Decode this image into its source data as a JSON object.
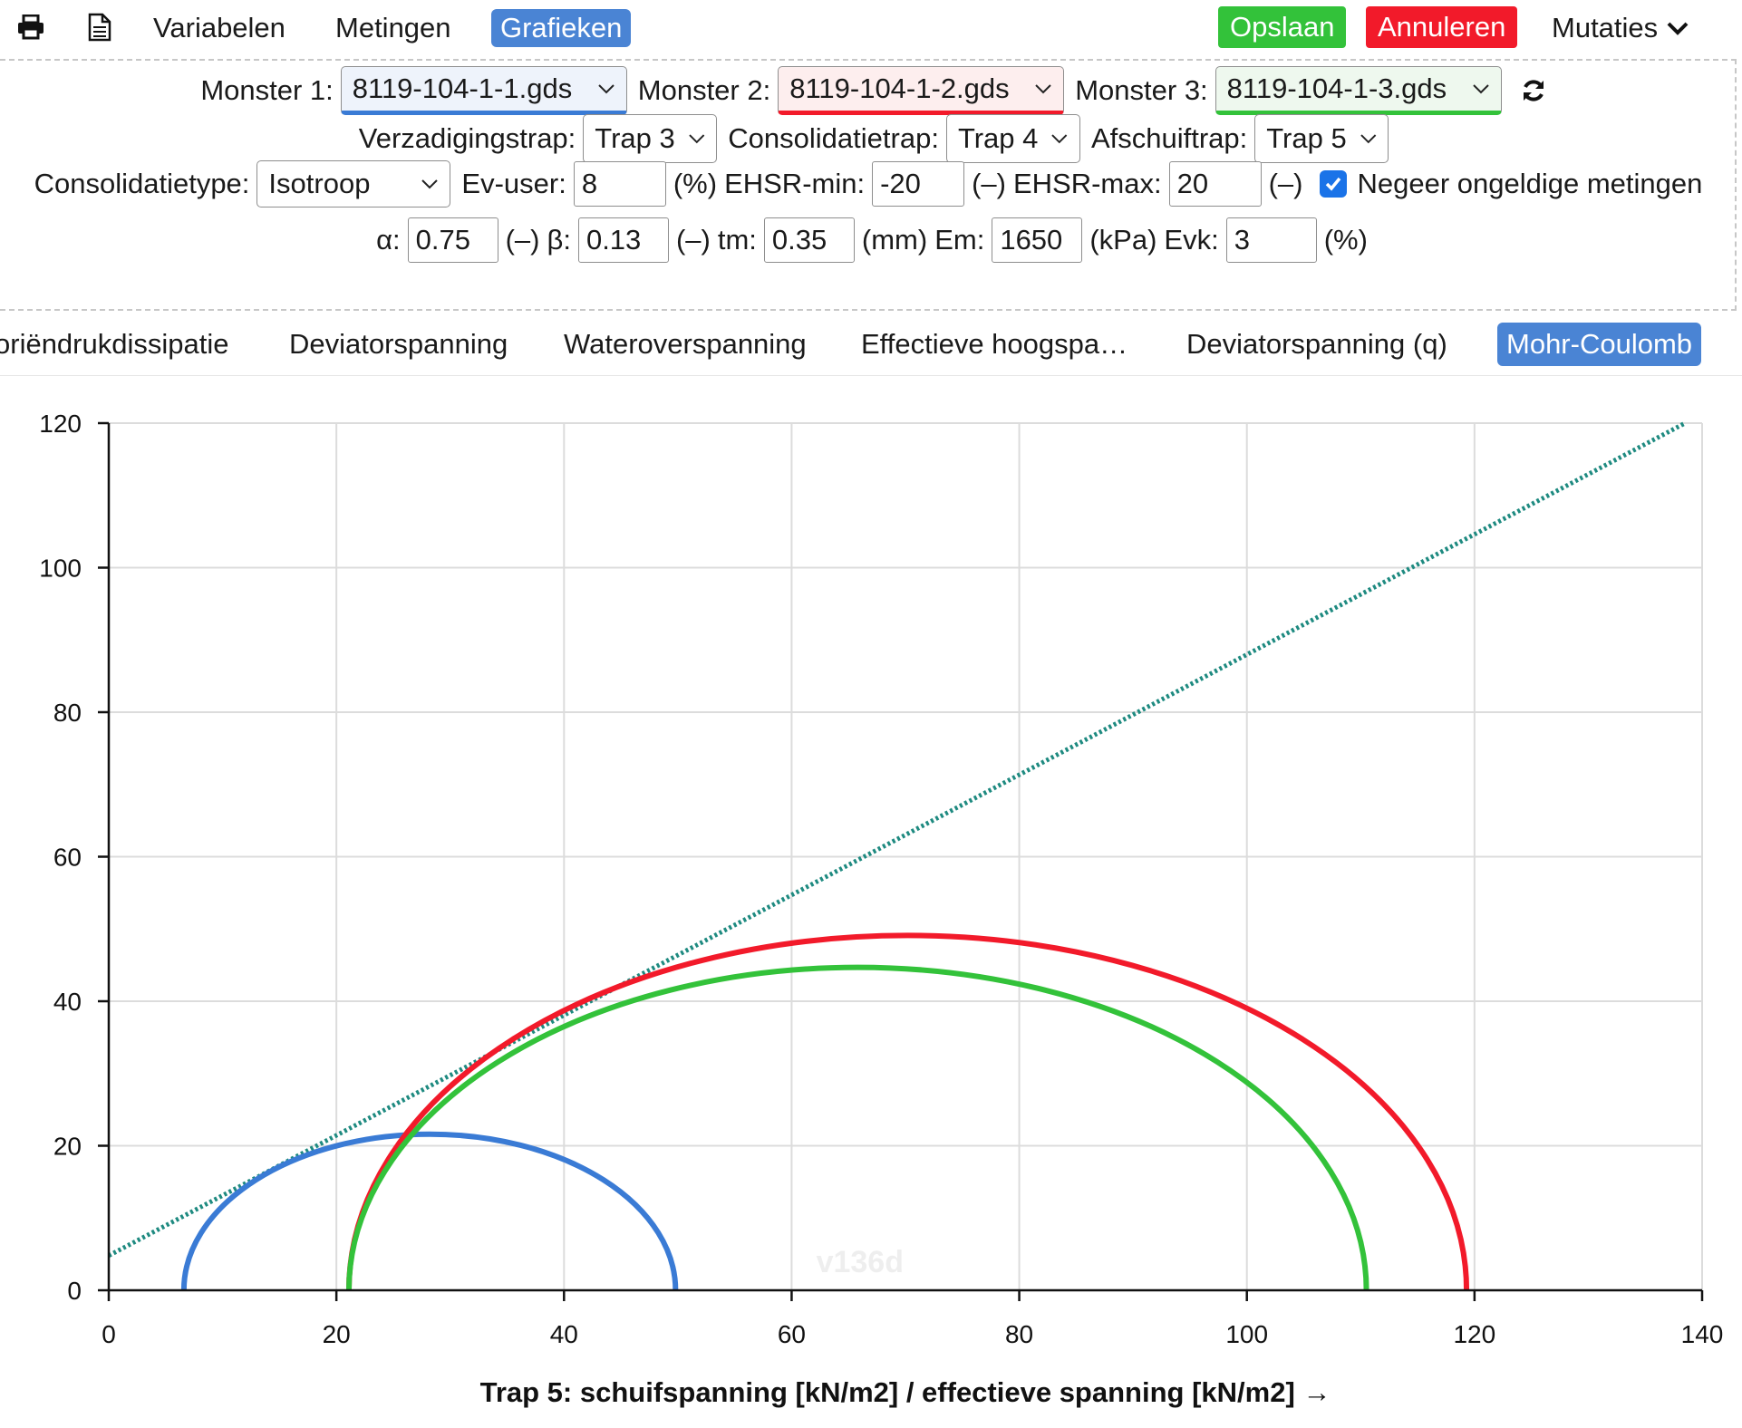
{
  "toolbar": {
    "print_icon": "printer-icon",
    "document_icon": "document-icon",
    "variabelen": "Variabelen",
    "metingen": "Metingen",
    "grafieken": "Grafieken",
    "opslaan": "Opslaan",
    "annuleren": "Annuleren",
    "mutaties": "Mutaties"
  },
  "samples": {
    "monster1_label": "Monster 1:",
    "monster1_value": "8119-104-1-1.gds",
    "monster2_label": "Monster 2:",
    "monster2_value": "8119-104-1-2.gds",
    "monster3_label": "Monster 3:",
    "monster3_value": "8119-104-1-3.gds",
    "refresh_icon": "refresh-icon"
  },
  "stages": {
    "verzadiging_label": "Verzadigingstrap:",
    "verzadiging_value": "Trap 3",
    "consolidatie_label": "Consolidatietrap:",
    "consolidatie_value": "Trap 4",
    "afschuif_label": "Afschuiftrap:",
    "afschuif_value": "Trap 5"
  },
  "params1": {
    "consolidatietype_label": "Consolidatietype:",
    "consolidatietype_value": "Isotroop",
    "ev_label": "Ev-user:",
    "ev_value": "8",
    "ev_unit": "(%)",
    "ehsr_min_label": "EHSR-min:",
    "ehsr_min_value": "-20",
    "ehsr_min_unit": "(–)",
    "ehsr_max_label": "EHSR-max:",
    "ehsr_max_value": "20",
    "ehsr_max_unit": "(–)",
    "negeer_label": "Negeer ongeldige metingen",
    "negeer_checked": true
  },
  "params2": {
    "alpha_label": "α:",
    "alpha_value": "0.75",
    "alpha_unit": "(–)",
    "beta_label": "β:",
    "beta_value": "0.13",
    "beta_unit": "(–)",
    "tm_label": "tm:",
    "tm_value": "0.35",
    "tm_unit": "(mm)",
    "em_label": "Em:",
    "em_value": "1650",
    "em_unit": "(kPa)",
    "evk_label": "Evk:",
    "evk_value": "3",
    "evk_unit": "(%)"
  },
  "tabs": [
    {
      "label": "oriëndrukdissipatie"
    },
    {
      "label": "Deviatorspanning"
    },
    {
      "label": "Wateroverspanning"
    },
    {
      "label": "Effectieve hoogspa…"
    },
    {
      "label": "Deviatorspanning (q)"
    },
    {
      "label": "Mohr-Coulomb"
    }
  ],
  "colors": {
    "blue": "#3a7bd5",
    "red": "#f21a2a",
    "green": "#33c23a",
    "envelope": "#1e8a80"
  },
  "chart_data": {
    "type": "line",
    "xlabel": "Trap 5: schuifspanning [kN/m2] / effectieve spanning [kN/m2] →",
    "ylabel": "",
    "xlim": [
      0,
      140
    ],
    "ylim": [
      0,
      120
    ],
    "xticks": [
      0,
      20,
      40,
      60,
      80,
      100,
      120,
      140
    ],
    "yticks": [
      0,
      20,
      40,
      60,
      80,
      100,
      120
    ],
    "grid": true,
    "watermark": "v136d",
    "circles": [
      {
        "center": 28.2,
        "radius": 21.6,
        "color": "#3a7bd5"
      },
      {
        "center": 70.2,
        "radius": 49.1,
        "color": "#f21a2a"
      },
      {
        "center": 65.8,
        "radius": 44.7,
        "color": "#33c23a"
      }
    ],
    "envelope": {
      "x": [
        0,
        138.5
      ],
      "y": [
        4.8,
        120
      ],
      "color": "#1e8a80",
      "style": "dotted"
    }
  }
}
